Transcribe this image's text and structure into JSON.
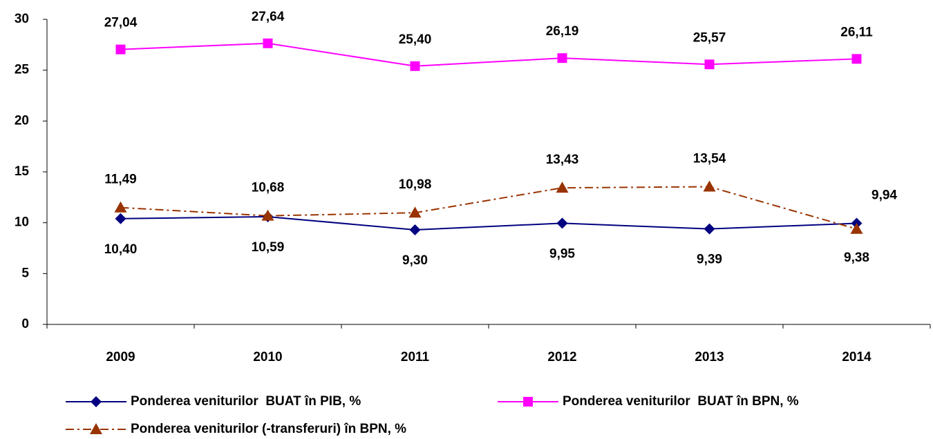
{
  "chart_data": {
    "type": "line",
    "categories": [
      "2009",
      "2010",
      "2011",
      "2012",
      "2013",
      "2014"
    ],
    "ylim": [
      0,
      30
    ],
    "yticks": [
      0,
      5,
      10,
      15,
      20,
      25,
      30
    ],
    "series": [
      {
        "name": "Ponderea veniturilor  BUAT în PIB, %",
        "color": "#000080",
        "marker": "diamond",
        "values": [
          10.4,
          10.59,
          9.3,
          9.95,
          9.39,
          9.94
        ],
        "value_labels": [
          "10,40",
          "10,59",
          "9,30",
          "9,95",
          "9,39",
          "9,94"
        ]
      },
      {
        "name": "Ponderea veniturilor  BUAT în BPN, %",
        "color": "#ff00ff",
        "marker": "square",
        "values": [
          27.04,
          27.64,
          25.4,
          26.19,
          25.57,
          26.11
        ],
        "value_labels": [
          "27,04",
          "27,64",
          "25,40",
          "26,19",
          "25,57",
          "26,11"
        ]
      },
      {
        "name": "Ponderea veniturilor (-transferuri) în BPN, %",
        "color": "#993300",
        "marker": "triangle",
        "dash": "dash-dot",
        "values": [
          11.49,
          10.68,
          10.98,
          13.43,
          13.54,
          9.38
        ],
        "value_labels": [
          "11,49",
          "10,68",
          "10,98",
          "13,43",
          "13,54",
          "9,38"
        ]
      }
    ]
  }
}
